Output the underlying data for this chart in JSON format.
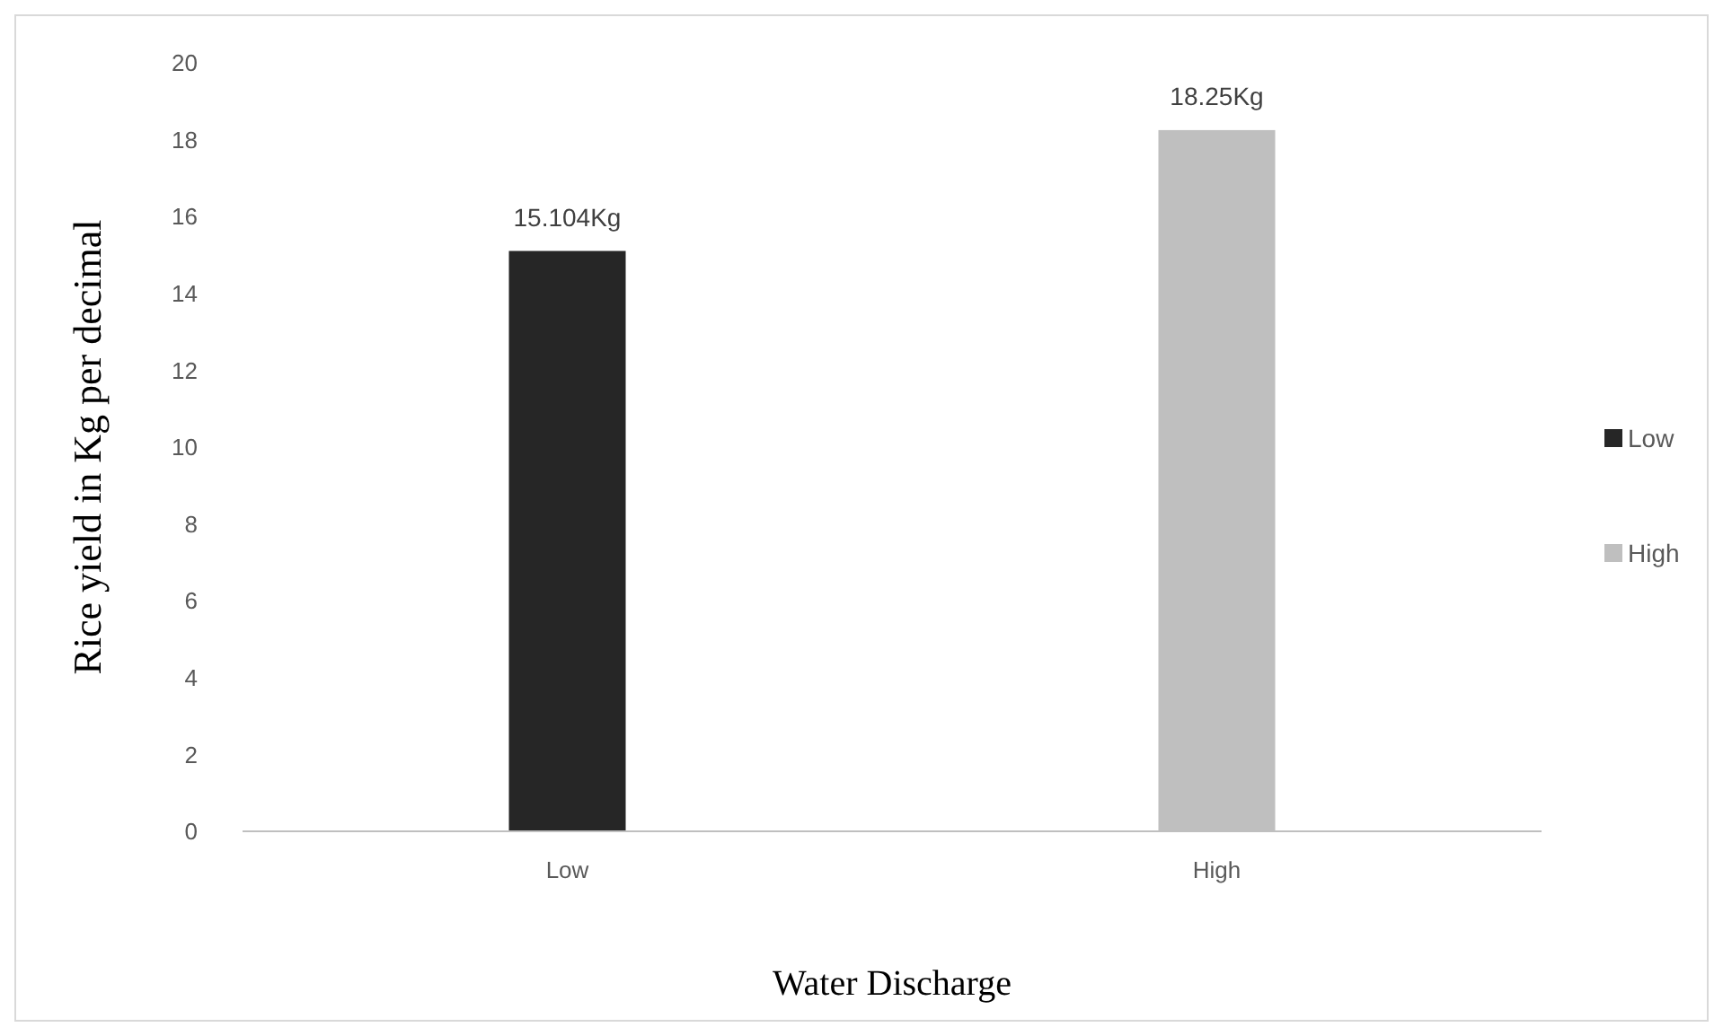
{
  "chart_data": {
    "type": "bar",
    "xlabel": "Water Discharge",
    "ylabel": "Rice yield in Kg per decimal",
    "categories": [
      "Low",
      "High"
    ],
    "series": [
      {
        "name": "Low",
        "color": "#262626",
        "values": [
          15.104,
          null
        ],
        "value_labels": [
          "15.104Kg",
          null
        ]
      },
      {
        "name": "High",
        "color": "#bfbfbf",
        "values": [
          null,
          18.25
        ],
        "value_labels": [
          null,
          "18.25Kg"
        ]
      }
    ],
    "ylim": [
      0,
      20
    ],
    "yticks": [
      0,
      2,
      4,
      6,
      8,
      10,
      12,
      14,
      16,
      18,
      20
    ],
    "grid": false,
    "legend": "right"
  }
}
